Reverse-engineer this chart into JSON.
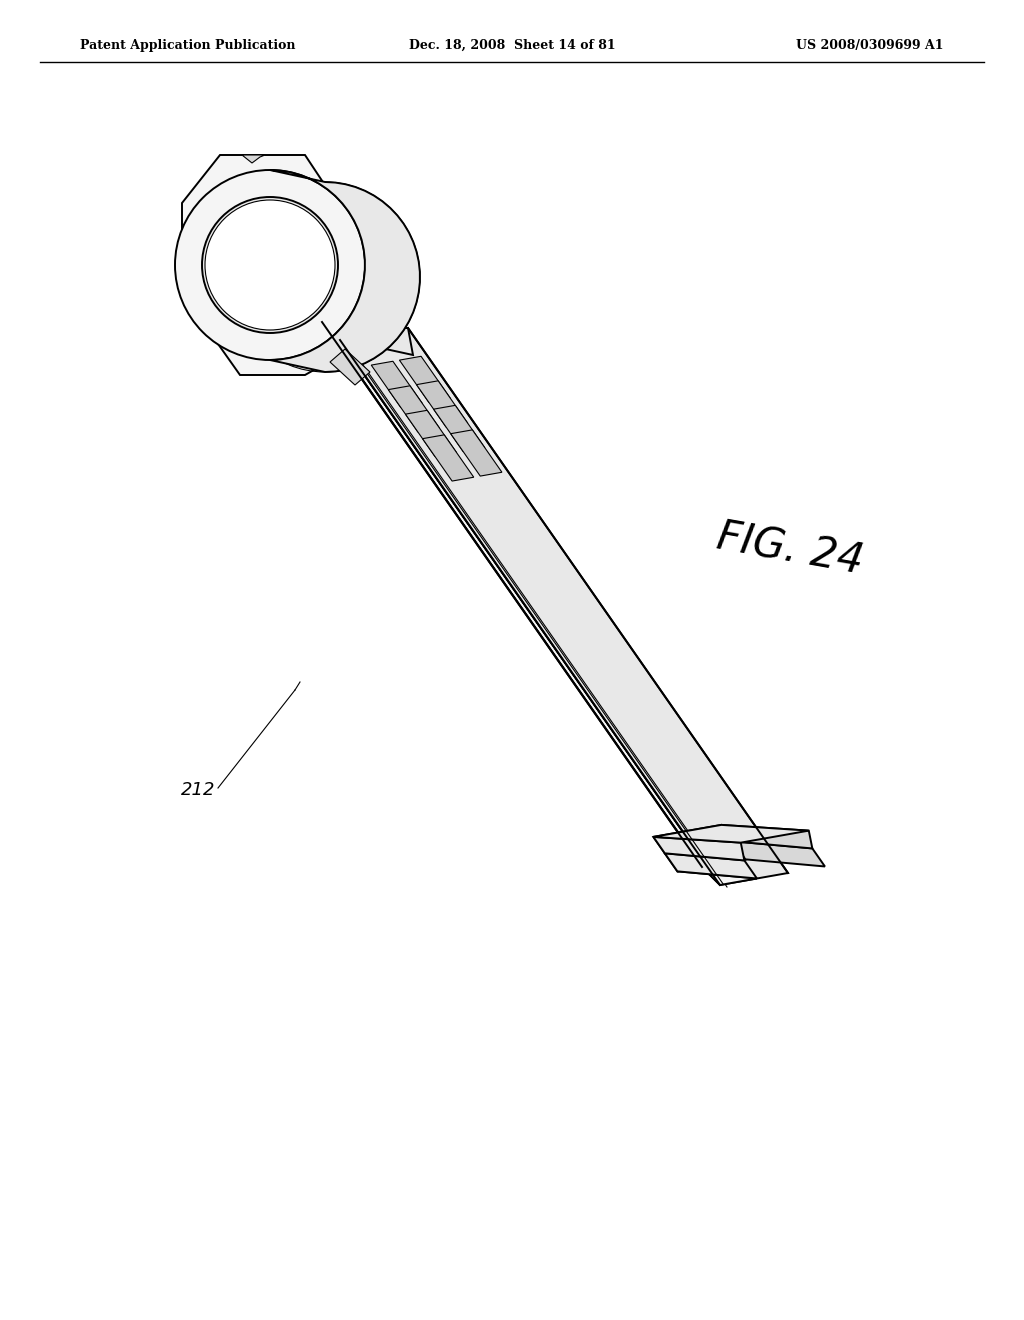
{
  "background_color": "#ffffff",
  "header_left": "Patent Application Publication",
  "header_center": "Dec. 18, 2008  Sheet 14 of 81",
  "header_right": "US 2008/0309699 A1",
  "figure_label": "FIG. 24",
  "part_label": "212",
  "line_color": "#000000",
  "face_light": "#f5f5f5",
  "face_mid": "#e8e8e8",
  "face_dark": "#d8d8d8",
  "face_darker": "#c8c8c8"
}
